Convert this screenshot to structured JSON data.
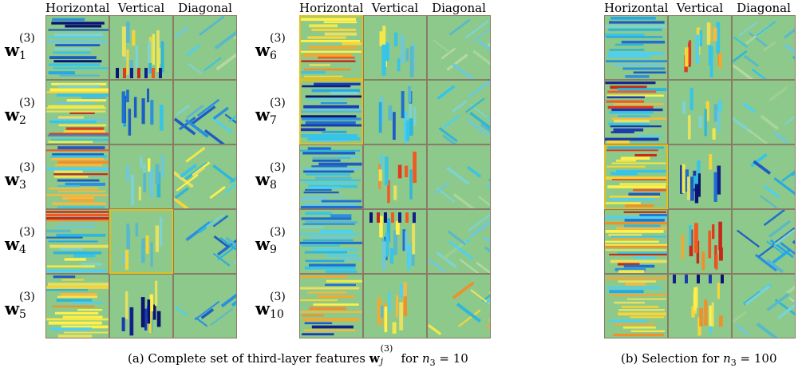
{
  "column_headers": [
    "Horizontal",
    "Vertical",
    "Diagonal"
  ],
  "left_rows": [
    {
      "base": "w",
      "sup": "(3)",
      "sub": "1"
    },
    {
      "base": "w",
      "sup": "(3)",
      "sub": "2"
    },
    {
      "base": "w",
      "sup": "(3)",
      "sub": "3"
    },
    {
      "base": "w",
      "sup": "(3)",
      "sub": "4"
    },
    {
      "base": "w",
      "sup": "(3)",
      "sub": "5"
    }
  ],
  "middle_rows": [
    {
      "base": "w",
      "sup": "(3)",
      "sub": "6"
    },
    {
      "base": "w",
      "sup": "(3)",
      "sub": "7"
    },
    {
      "base": "w",
      "sup": "(3)",
      "sub": "8"
    },
    {
      "base": "w",
      "sup": "(3)",
      "sub": "9"
    },
    {
      "base": "w",
      "sup": "(3)",
      "sub": "10"
    }
  ],
  "caption_a": {
    "prefix": "(a)  Complete set of third-layer features ",
    "symbol": "w",
    "sub": "j",
    "sup": "(3)",
    "middle": " for ",
    "var": "n",
    "var_sub": "3",
    "suffix": " = 10"
  },
  "caption_b": {
    "prefix": "(b)  Selection for ",
    "var": "n",
    "var_sub": "3",
    "suffix": " = 100"
  },
  "colors": {
    "cell_background": "#8cc98a",
    "cell_border": "#8a7a66",
    "highlight_border": "#e0c020"
  },
  "colormap": "jet",
  "cell_patterns": {
    "left": [
      [
        "h-dark",
        "v-mixed-red",
        "d-light"
      ],
      [
        "h-blue-yellow",
        "v-blue",
        "d-blue"
      ],
      [
        "h-red-orange",
        "v-light",
        "d-yellow"
      ],
      [
        "h-red-top",
        "v-light",
        "d-blue"
      ],
      [
        "h-yellow",
        "v-dark",
        "d-blue"
      ]
    ],
    "middle": [
      [
        "h-yellow-orange",
        "v-light",
        "d-faint"
      ],
      [
        "h-dark",
        "v-blue",
        "d-light"
      ],
      [
        "h-blue",
        "v-red",
        "d-light"
      ],
      [
        "h-blue",
        "v-red-top",
        "d-light"
      ],
      [
        "h-dark-yellow",
        "v-orange",
        "d-yellow"
      ]
    ],
    "right": [
      [
        "h-blue",
        "v-red",
        "d-light"
      ],
      [
        "h-dark-red",
        "v-light",
        "d-light"
      ],
      [
        "h-red-yellow",
        "v-dark",
        "d-blue"
      ],
      [
        "h-orange",
        "v-red",
        "d-blue"
      ],
      [
        "h-yellow",
        "v-dark-top",
        "d-light"
      ]
    ]
  }
}
